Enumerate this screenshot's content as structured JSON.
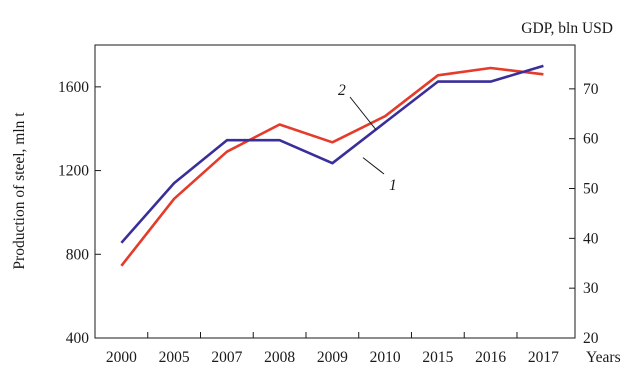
{
  "chart_data": {
    "type": "line",
    "categories": [
      "2000",
      "2005",
      "2007",
      "2008",
      "2009",
      "2010",
      "2015",
      "2016",
      "2017"
    ],
    "xlabel": "Years",
    "ylabel": "Production of steel, mln t",
    "y2label": "GDP, bln USD",
    "ylim": [
      400,
      1800
    ],
    "y2lim": [
      20,
      78.8
    ],
    "yticks": [
      400,
      800,
      1200,
      1600
    ],
    "y2ticks": [
      20,
      30,
      40,
      50,
      60,
      70
    ],
    "series": [
      {
        "name": "1",
        "axis": "left",
        "color": "#3a2f9a",
        "values": [
          855,
          1140,
          1345,
          1345,
          1235,
          1430,
          1625,
          1625,
          1700
        ]
      },
      {
        "name": "2",
        "axis": "left",
        "color": "#e43b2a",
        "values": [
          745,
          1065,
          1290,
          1420,
          1335,
          1460,
          1655,
          1690,
          1660
        ]
      }
    ],
    "grid": false
  }
}
